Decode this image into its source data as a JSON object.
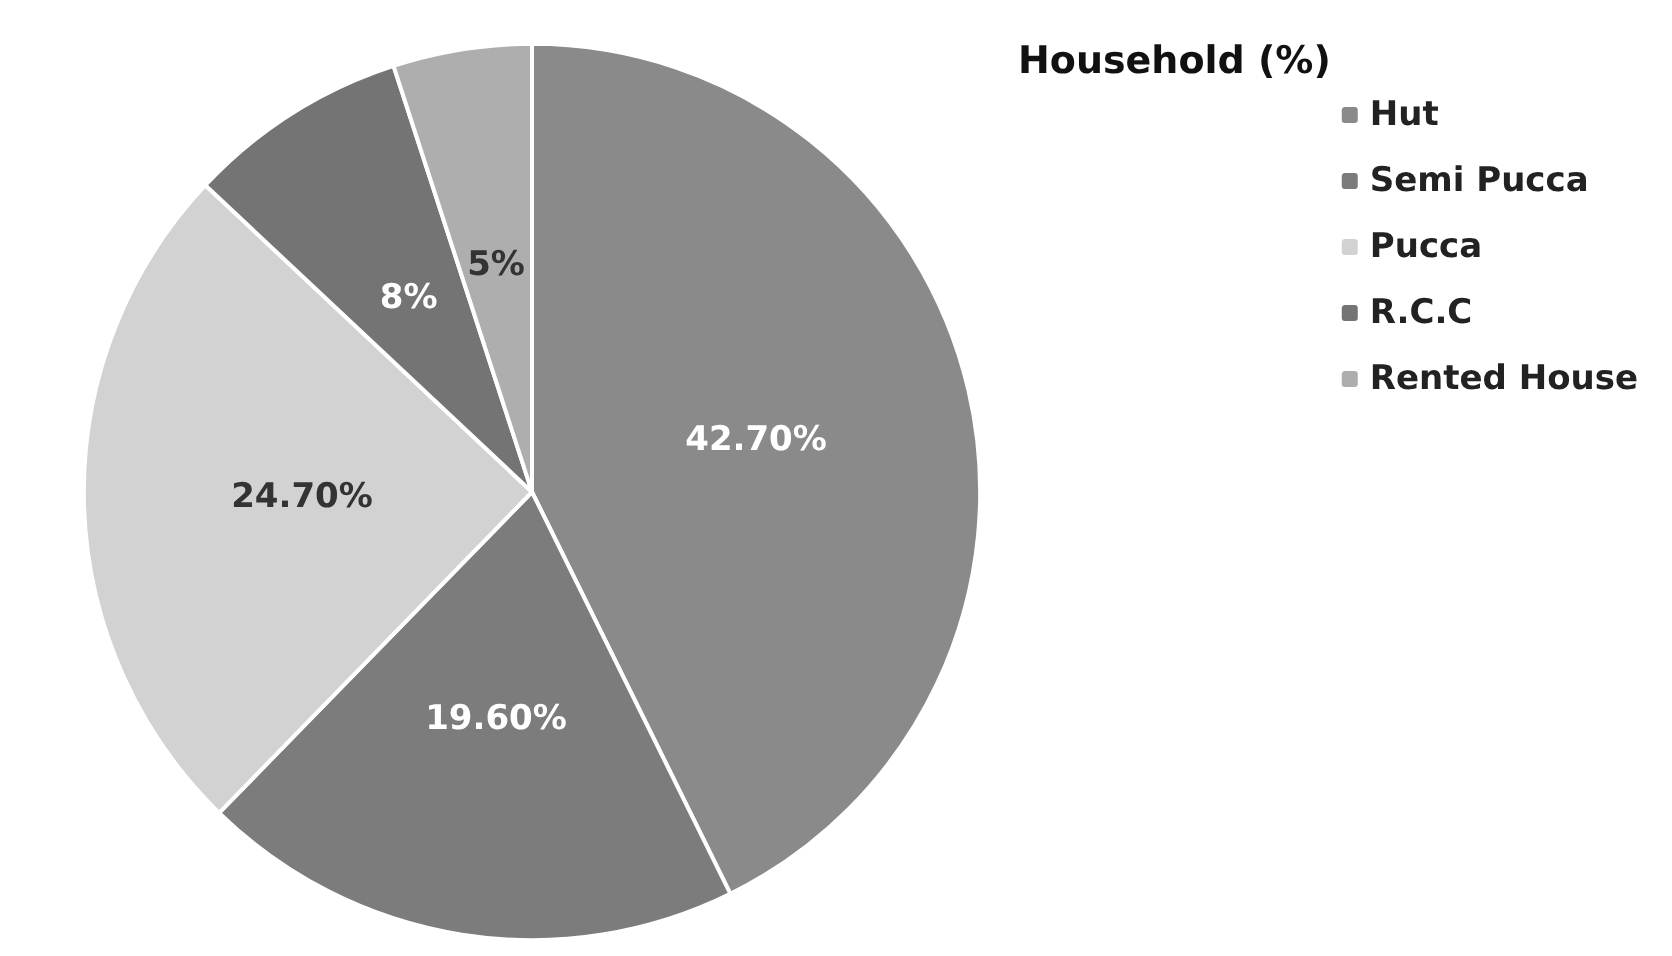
{
  "chart_data": {
    "type": "pie",
    "title": "Household (%)",
    "categories": [
      "Hut",
      "Semi Pucca",
      "Pucca",
      "R.C.C",
      "Rented House"
    ],
    "values": [
      42.7,
      19.6,
      24.7,
      8,
      5
    ],
    "value_labels": [
      "42.70%",
      "19.60%",
      "24.70%",
      "8%",
      "5%"
    ],
    "colors": [
      "#8a8a8a",
      "#7c7c7c",
      "#d2d2d2",
      "#747474",
      "#aeaeae"
    ],
    "legend": "top right"
  }
}
